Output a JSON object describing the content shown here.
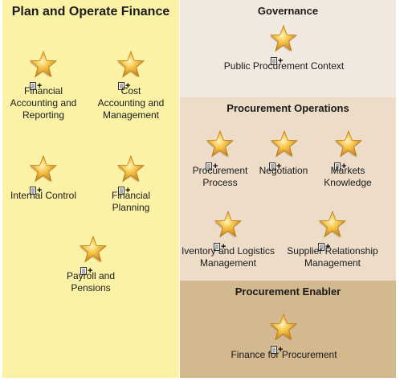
{
  "left": {
    "title": "Plan and Operate Finance",
    "items": [
      {
        "label": "Financial\nAccounting and\nReporting"
      },
      {
        "label": "Cost\nAccounting and\nManagement"
      },
      {
        "label": "Internal Control"
      },
      {
        "label": "Financial\nPlanning"
      },
      {
        "label": "Payroll and\nPensions"
      }
    ]
  },
  "governance": {
    "title": "Governance",
    "items": [
      {
        "label": "Public Procurement Context"
      }
    ]
  },
  "operations": {
    "title": "Procurement Operations",
    "items": [
      {
        "label": "Procurement\nProcess"
      },
      {
        "label": "Negotiation"
      },
      {
        "label": "Markets\nKnowledge"
      },
      {
        "label": "Iventory and Logistics\nManagement"
      },
      {
        "label": "Supplier Relationship\nManagement"
      }
    ]
  },
  "enabler": {
    "title": "Procurement Enabler",
    "items": [
      {
        "label": "Finance for Procurement"
      }
    ]
  },
  "icons": {
    "node": "star-icon",
    "document": "document-icon",
    "add": "plus-icon"
  },
  "colors": {
    "finance_bg": "#fcf2a6",
    "governance_bg": "#f1e8df",
    "operations_bg": "#ecdcc8",
    "enabler_bg": "#d4b88e",
    "star_fill": "#f5b731"
  }
}
